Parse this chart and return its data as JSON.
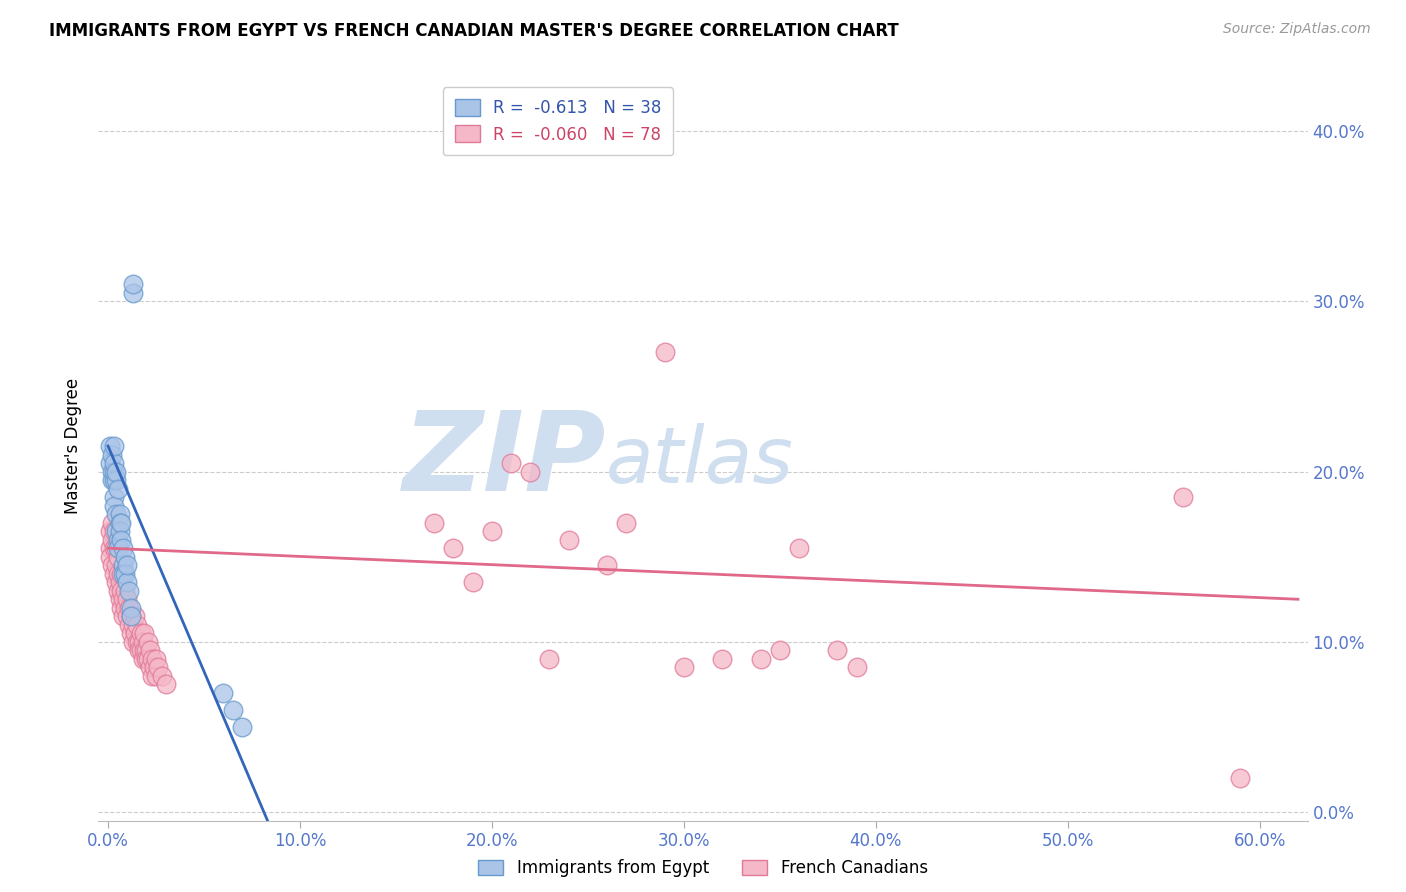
{
  "title": "IMMIGRANTS FROM EGYPT VS FRENCH CANADIAN MASTER'S DEGREE CORRELATION CHART",
  "source": "Source: ZipAtlas.com",
  "ylabel": "Master's Degree",
  "right_ytick_labels": [
    "0.0%",
    "10.0%",
    "20.0%",
    "30.0%",
    "40.0%"
  ],
  "right_ytick_values": [
    0.0,
    0.1,
    0.2,
    0.3,
    0.4
  ],
  "bottom_xtick_labels": [
    "0.0%",
    "10.0%",
    "20.0%",
    "30.0%",
    "40.0%",
    "50.0%",
    "60.0%"
  ],
  "bottom_xtick_values": [
    0.0,
    0.1,
    0.2,
    0.3,
    0.4,
    0.5,
    0.6
  ],
  "xlim": [
    -0.005,
    0.625
  ],
  "ylim": [
    -0.005,
    0.435
  ],
  "egypt_color": "#aac4e8",
  "egypt_edge_color": "#6699cc",
  "french_color": "#f5b8c8",
  "french_edge_color": "#e07898",
  "blue_line_color": "#3366bb",
  "pink_line_color": "#e06888",
  "watermark_zip": "ZIP",
  "watermark_atlas": "atlas",
  "watermark_color": "#d0dff0",
  "egypt_points": [
    [
      0.001,
      0.205
    ],
    [
      0.001,
      0.215
    ],
    [
      0.002,
      0.2
    ],
    [
      0.002,
      0.195
    ],
    [
      0.002,
      0.21
    ],
    [
      0.003,
      0.195
    ],
    [
      0.003,
      0.2
    ],
    [
      0.003,
      0.205
    ],
    [
      0.003,
      0.215
    ],
    [
      0.003,
      0.185
    ],
    [
      0.003,
      0.18
    ],
    [
      0.004,
      0.195
    ],
    [
      0.004,
      0.2
    ],
    [
      0.004,
      0.175
    ],
    [
      0.004,
      0.165
    ],
    [
      0.005,
      0.19
    ],
    [
      0.005,
      0.16
    ],
    [
      0.005,
      0.155
    ],
    [
      0.006,
      0.175
    ],
    [
      0.006,
      0.17
    ],
    [
      0.006,
      0.165
    ],
    [
      0.007,
      0.17
    ],
    [
      0.007,
      0.16
    ],
    [
      0.008,
      0.155
    ],
    [
      0.008,
      0.145
    ],
    [
      0.008,
      0.14
    ],
    [
      0.009,
      0.15
    ],
    [
      0.009,
      0.14
    ],
    [
      0.01,
      0.135
    ],
    [
      0.01,
      0.145
    ],
    [
      0.011,
      0.13
    ],
    [
      0.012,
      0.12
    ],
    [
      0.012,
      0.115
    ],
    [
      0.013,
      0.305
    ],
    [
      0.013,
      0.31
    ],
    [
      0.06,
      0.07
    ],
    [
      0.065,
      0.06
    ],
    [
      0.07,
      0.05
    ]
  ],
  "french_points": [
    [
      0.001,
      0.155
    ],
    [
      0.001,
      0.165
    ],
    [
      0.001,
      0.15
    ],
    [
      0.002,
      0.16
    ],
    [
      0.002,
      0.145
    ],
    [
      0.002,
      0.17
    ],
    [
      0.003,
      0.155
    ],
    [
      0.003,
      0.14
    ],
    [
      0.003,
      0.165
    ],
    [
      0.004,
      0.145
    ],
    [
      0.004,
      0.135
    ],
    [
      0.004,
      0.155
    ],
    [
      0.005,
      0.14
    ],
    [
      0.005,
      0.13
    ],
    [
      0.005,
      0.15
    ],
    [
      0.006,
      0.135
    ],
    [
      0.006,
      0.125
    ],
    [
      0.007,
      0.13
    ],
    [
      0.007,
      0.12
    ],
    [
      0.007,
      0.14
    ],
    [
      0.008,
      0.125
    ],
    [
      0.008,
      0.115
    ],
    [
      0.009,
      0.12
    ],
    [
      0.009,
      0.13
    ],
    [
      0.01,
      0.115
    ],
    [
      0.01,
      0.125
    ],
    [
      0.011,
      0.11
    ],
    [
      0.011,
      0.12
    ],
    [
      0.012,
      0.115
    ],
    [
      0.012,
      0.105
    ],
    [
      0.013,
      0.11
    ],
    [
      0.013,
      0.1
    ],
    [
      0.014,
      0.105
    ],
    [
      0.014,
      0.115
    ],
    [
      0.015,
      0.1
    ],
    [
      0.015,
      0.11
    ],
    [
      0.016,
      0.1
    ],
    [
      0.016,
      0.095
    ],
    [
      0.017,
      0.105
    ],
    [
      0.017,
      0.095
    ],
    [
      0.018,
      0.1
    ],
    [
      0.018,
      0.09
    ],
    [
      0.019,
      0.095
    ],
    [
      0.019,
      0.105
    ],
    [
      0.02,
      0.095
    ],
    [
      0.02,
      0.09
    ],
    [
      0.021,
      0.09
    ],
    [
      0.021,
      0.1
    ],
    [
      0.022,
      0.085
    ],
    [
      0.022,
      0.095
    ],
    [
      0.023,
      0.09
    ],
    [
      0.023,
      0.08
    ],
    [
      0.024,
      0.085
    ],
    [
      0.025,
      0.08
    ],
    [
      0.025,
      0.09
    ],
    [
      0.026,
      0.085
    ],
    [
      0.028,
      0.08
    ],
    [
      0.03,
      0.075
    ],
    [
      0.17,
      0.17
    ],
    [
      0.18,
      0.155
    ],
    [
      0.19,
      0.135
    ],
    [
      0.2,
      0.165
    ],
    [
      0.21,
      0.205
    ],
    [
      0.22,
      0.2
    ],
    [
      0.23,
      0.09
    ],
    [
      0.24,
      0.16
    ],
    [
      0.26,
      0.145
    ],
    [
      0.27,
      0.17
    ],
    [
      0.29,
      0.27
    ],
    [
      0.3,
      0.085
    ],
    [
      0.32,
      0.09
    ],
    [
      0.34,
      0.09
    ],
    [
      0.35,
      0.095
    ],
    [
      0.36,
      0.155
    ],
    [
      0.38,
      0.095
    ],
    [
      0.39,
      0.085
    ],
    [
      0.56,
      0.185
    ],
    [
      0.59,
      0.02
    ]
  ],
  "egypt_line_x": [
    0.0,
    0.085
  ],
  "egypt_line_y_start": 0.215,
  "egypt_line_y_end": -0.01,
  "french_line_x": [
    0.0,
    0.62
  ],
  "french_line_y_start": 0.155,
  "french_line_y_end": 0.125
}
